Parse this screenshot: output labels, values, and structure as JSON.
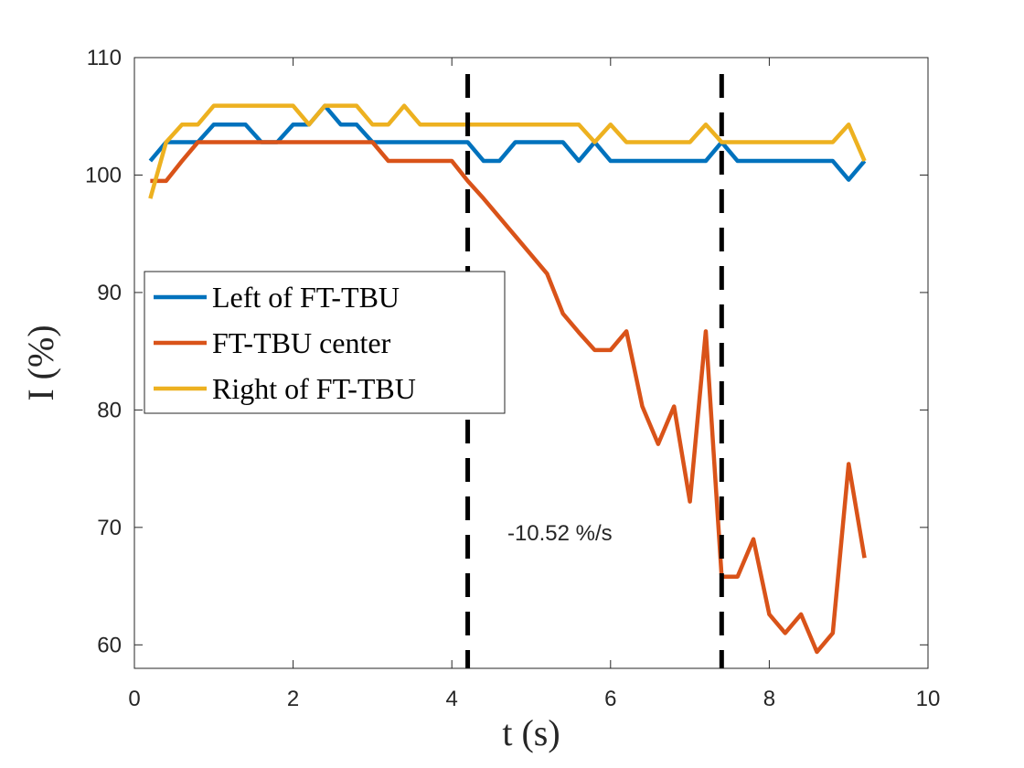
{
  "chart_data": {
    "type": "line",
    "xlabel": "t (s)",
    "ylabel": "I (%)",
    "x": [
      0.2,
      0.4,
      0.6,
      0.8,
      1.0,
      1.2,
      1.4,
      1.6,
      1.8,
      2.0,
      2.2,
      2.4,
      2.6,
      2.8,
      3.0,
      3.2,
      3.4,
      3.6,
      3.8,
      4.0,
      4.2,
      4.4,
      4.6,
      4.8,
      5.0,
      5.2,
      5.4,
      5.6,
      5.8,
      6.0,
      6.2,
      6.4,
      6.6,
      6.8,
      7.0,
      7.2,
      7.4,
      7.6,
      7.8,
      8.0,
      8.2,
      8.4,
      8.6,
      8.8,
      9.0,
      9.2
    ],
    "series": [
      {
        "name": "Left of FT-TBU",
        "color": "#0072BD",
        "values": [
          101.2,
          102.8,
          102.8,
          102.8,
          104.3,
          104.3,
          104.3,
          102.8,
          102.8,
          104.3,
          104.3,
          105.9,
          104.3,
          104.3,
          102.8,
          102.8,
          102.8,
          102.8,
          102.8,
          102.8,
          102.8,
          101.2,
          101.2,
          102.8,
          102.8,
          102.8,
          102.8,
          101.2,
          102.8,
          101.2,
          101.2,
          101.2,
          101.2,
          101.2,
          101.2,
          101.2,
          102.8,
          101.2,
          101.2,
          101.2,
          101.2,
          101.2,
          101.2,
          101.2,
          99.6,
          101.2
        ]
      },
      {
        "name": "FT-TBU center",
        "color": "#D95319",
        "values": [
          99.5,
          99.5,
          101.2,
          102.8,
          102.8,
          102.8,
          102.8,
          102.8,
          102.8,
          102.8,
          102.8,
          102.8,
          102.8,
          102.8,
          102.8,
          101.2,
          101.2,
          101.2,
          101.2,
          101.2,
          99.5,
          98.0,
          96.4,
          94.8,
          93.2,
          91.6,
          88.2,
          86.6,
          85.1,
          85.1,
          86.7,
          80.3,
          77.1,
          80.3,
          72.2,
          86.7,
          65.8,
          65.8,
          69.0,
          62.6,
          61.0,
          62.6,
          59.4,
          61.0,
          75.4,
          67.4
        ]
      },
      {
        "name": "Right of FT-TBU",
        "color": "#EDB120",
        "values": [
          98.0,
          102.8,
          104.3,
          104.3,
          105.9,
          105.9,
          105.9,
          105.9,
          105.9,
          105.9,
          104.3,
          105.9,
          105.9,
          105.9,
          104.3,
          104.3,
          105.9,
          104.3,
          104.3,
          104.3,
          104.3,
          104.3,
          104.3,
          104.3,
          104.3,
          104.3,
          104.3,
          104.3,
          102.8,
          104.3,
          102.8,
          102.8,
          102.8,
          102.8,
          102.8,
          104.3,
          102.8,
          102.8,
          102.8,
          102.8,
          102.8,
          102.8,
          102.8,
          102.8,
          104.3,
          101.2
        ]
      }
    ],
    "vlines": [
      4.2,
      7.4
    ],
    "annotation": {
      "text": "-10.52 %/s",
      "x": 4.7,
      "y": 69.6
    },
    "xlim": [
      0,
      10
    ],
    "xticks": [
      0,
      2,
      4,
      6,
      8,
      10
    ],
    "ylim": [
      58,
      110
    ],
    "yticks": [
      60,
      70,
      80,
      90,
      100,
      110
    ],
    "legend": "west"
  }
}
